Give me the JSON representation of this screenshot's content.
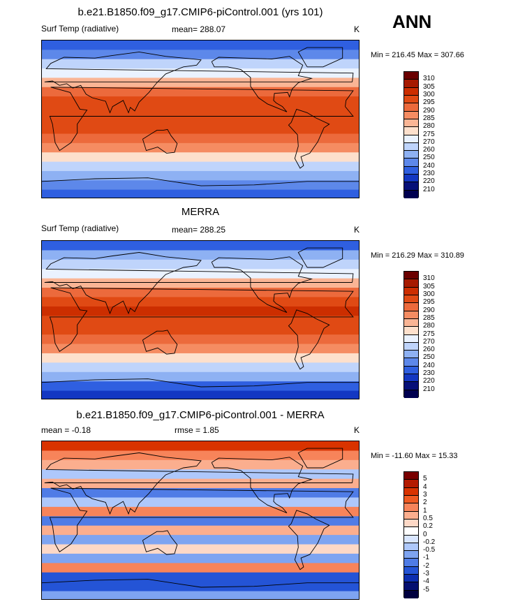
{
  "season": "ANN",
  "panels": [
    {
      "title": "b.e21.B1850.f09_g17.CMIP6-piControl.001 (yrs 101)",
      "left": "Surf Temp (radiative)",
      "center": "mean= 288.07",
      "units": "K",
      "minmax": "Min = 216.45 Max = 307.66",
      "levels": [
        "310",
        "305",
        "300",
        "295",
        "290",
        "285",
        "280",
        "275",
        "270",
        "260",
        "250",
        "240",
        "230",
        "220",
        "210"
      ]
    },
    {
      "title": "MERRA",
      "left": "Surf Temp (radiative)",
      "center": "mean= 288.25",
      "units": "K",
      "minmax": "Min = 216.29 Max = 310.89",
      "levels": [
        "310",
        "305",
        "300",
        "295",
        "290",
        "285",
        "280",
        "275",
        "270",
        "260",
        "250",
        "240",
        "230",
        "220",
        "210"
      ]
    },
    {
      "title": "b.e21.B1850.f09_g17.CMIP6-piControl.001 - MERRA",
      "left": "mean =  -0.18",
      "center": "rmse =   1.85",
      "units": "K",
      "minmax": "Min = -11.60 Max =  15.33",
      "levels": [
        "5",
        "4",
        "3",
        "2",
        "1",
        "0.5",
        "0.2",
        "0",
        "-0.2",
        "-0.5",
        "-1",
        "-2",
        "-3",
        "-4",
        "-5"
      ]
    }
  ],
  "colors": {
    "abs": [
      "#6b0000",
      "#a61a00",
      "#cc2e00",
      "#e04a14",
      "#ec6a3c",
      "#f58c62",
      "#fab595",
      "#fde0cc",
      "#eaf2ff",
      "#bfd4fb",
      "#8eb1f3",
      "#5d88ea",
      "#2f5fe0",
      "#1337c2",
      "#061078",
      "#000050"
    ],
    "diff": [
      "#7a0000",
      "#b31a00",
      "#d93300",
      "#ef5a22",
      "#f7845a",
      "#fbae8e",
      "#fdd8c6",
      "#ffffff",
      "#d9e6ff",
      "#aec8fb",
      "#7ea4f1",
      "#4f7ce6",
      "#2454d6",
      "#0c2eb0",
      "#040f70",
      "#000040"
    ]
  },
  "chart_data": [
    {
      "type": "heatmap",
      "title": "b.e21.B1850.f09_g17.CMIP6-piControl.001 (yrs 101)",
      "variable": "Surf Temp (radiative)",
      "units": "K",
      "mean": 288.07,
      "min": 216.45,
      "max": 307.66,
      "contour_levels": [
        210,
        220,
        230,
        240,
        250,
        260,
        270,
        275,
        280,
        285,
        290,
        295,
        300,
        305,
        310
      ],
      "lat_band_values": [
        235,
        248,
        262,
        273,
        282,
        291,
        297,
        299,
        298,
        297,
        292,
        286,
        278,
        268,
        256,
        244,
        232
      ]
    },
    {
      "type": "heatmap",
      "title": "MERRA",
      "variable": "Surf Temp (radiative)",
      "units": "K",
      "mean": 288.25,
      "min": 216.29,
      "max": 310.89,
      "contour_levels": [
        210,
        220,
        230,
        240,
        250,
        260,
        270,
        275,
        280,
        285,
        290,
        295,
        300,
        305,
        310
      ],
      "lat_band_values": [
        238,
        250,
        263,
        274,
        283,
        292,
        298,
        300,
        299,
        298,
        293,
        287,
        279,
        269,
        254,
        238,
        225
      ]
    },
    {
      "type": "heatmap",
      "title": "b.e21.B1850.f09_g17.CMIP6-piControl.001 - MERRA",
      "units": "K",
      "mean": -0.18,
      "rmse": 1.85,
      "min": -11.6,
      "max": 15.33,
      "contour_levels": [
        -5,
        -4,
        -3,
        -2,
        -1,
        -0.5,
        -0.2,
        0,
        0.2,
        0.5,
        1,
        2,
        3,
        4,
        5
      ],
      "lat_band_values": [
        3,
        1.5,
        0.5,
        -0.5,
        0.6,
        -1.2,
        -0.4,
        1.2,
        -1.5,
        0.8,
        -0.6,
        0.3,
        -0.8,
        1.5,
        -2.5,
        -3,
        -1
      ]
    }
  ]
}
